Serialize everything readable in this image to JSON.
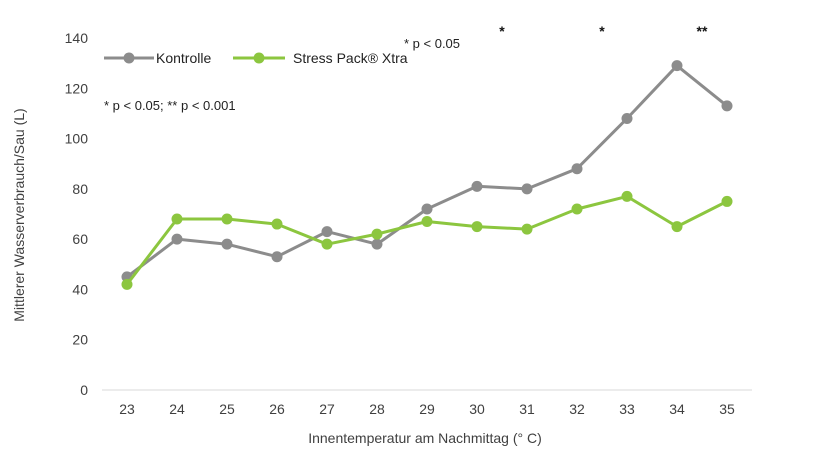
{
  "chart_data": {
    "type": "line",
    "title": "",
    "xlabel": "Innentemperatur am Nachmittag (° C)",
    "ylabel": "Mittlerer Wasserverbrauch/Sau (L)",
    "ylim": [
      0,
      140
    ],
    "yticks": [
      0,
      20,
      40,
      60,
      80,
      100,
      120,
      140
    ],
    "grid": false,
    "legend_position": "top-left",
    "categories": [
      "23",
      "24",
      "25",
      "26",
      "27",
      "28",
      "29",
      "30",
      "31",
      "32",
      "33",
      "34",
      "35"
    ],
    "series": [
      {
        "name": "Kontrolle",
        "color": "#8c8c8c",
        "values": [
          45,
          60,
          58,
          53,
          63,
          58,
          72,
          81,
          80,
          88,
          108,
          129,
          113
        ]
      },
      {
        "name": "Stress Pack® Xtra",
        "color": "#8cc63f",
        "values": [
          42,
          68,
          68,
          66,
          58,
          62,
          67,
          65,
          64,
          72,
          77,
          65,
          75
        ]
      }
    ],
    "annotations": {
      "significance_note_top": "* p < 0.05",
      "significance_note_legend": "* p < 0.05; ** p < 0.001",
      "markers": [
        {
          "between": [
            "30",
            "31"
          ],
          "label": "*"
        },
        {
          "between": [
            "32",
            "33"
          ],
          "label": "*"
        },
        {
          "between": [
            "34",
            "35"
          ],
          "label": "**"
        }
      ]
    }
  }
}
